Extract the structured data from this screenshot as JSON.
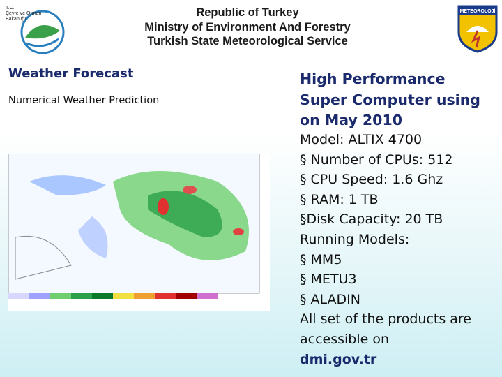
{
  "header": {
    "lines": [
      "Republic of Turkey",
      "Ministry of Environment And Forestry",
      "Turkish State Meteorological Service"
    ],
    "left_logo": [
      "T.C.",
      "Çevre ve Orman",
      "Bakanlığı"
    ],
    "right_logo": "METEOROLOJİ"
  },
  "left": {
    "title": "Weather Forecast",
    "subtitle": "Numerical Weather Prediction"
  },
  "right": {
    "title": [
      "High Performance",
      "Super Computer using",
      "on May 2010"
    ],
    "lines": [
      "Model: ALTIX 4700",
      "§ Number of CPUs: 512",
      "§ CPU Speed: 1.6 Ghz",
      "§ RAM: 1 TB",
      "§Disk Capacity: 20 TB",
      "Running Models:",
      "§ MM5",
      "§ METU3",
      "§ ALADIN",
      "All set of the products are",
      "accessible on"
    ],
    "link": "dmi.gov.tr"
  }
}
